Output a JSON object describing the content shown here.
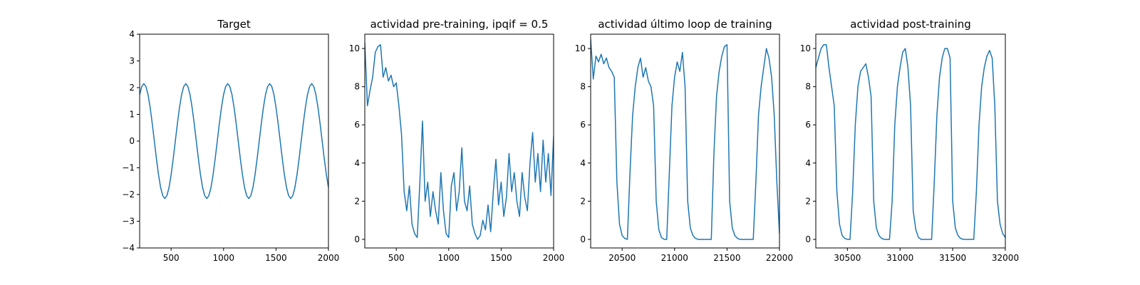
{
  "chart_data": [
    {
      "type": "line",
      "title": "Target",
      "color": "#1f77b4",
      "x": [
        200,
        220,
        240,
        260,
        280,
        300,
        320,
        340,
        360,
        380,
        400,
        420,
        440,
        460,
        480,
        500,
        520,
        540,
        560,
        580,
        600,
        620,
        640,
        660,
        680,
        700,
        720,
        740,
        760,
        780,
        800,
        820,
        840,
        860,
        880,
        900,
        920,
        940,
        960,
        980,
        1000,
        1020,
        1040,
        1060,
        1080,
        1100,
        1120,
        1140,
        1160,
        1180,
        1200,
        1220,
        1240,
        1260,
        1280,
        1300,
        1320,
        1340,
        1360,
        1380,
        1400,
        1420,
        1440,
        1460,
        1480,
        1500,
        1520,
        1540,
        1560,
        1580,
        1600,
        1620,
        1640,
        1660,
        1680,
        1700,
        1720,
        1740,
        1760,
        1780,
        1800,
        1820,
        1840,
        1860,
        1880,
        1900,
        1920,
        1940,
        1960,
        1980,
        2000
      ],
      "values": [
        1.74,
        2.04,
        2.15,
        2.04,
        1.74,
        1.26,
        0.66,
        0,
        -0.66,
        -1.26,
        -1.74,
        -2.04,
        -2.15,
        -2.04,
        -1.74,
        -1.26,
        -0.66,
        0,
        0.66,
        1.26,
        1.74,
        2.04,
        2.15,
        2.04,
        1.74,
        1.26,
        0.66,
        0,
        -0.66,
        -1.26,
        -1.74,
        -2.04,
        -2.15,
        -2.04,
        -1.74,
        -1.26,
        -0.66,
        0,
        0.66,
        1.26,
        1.74,
        2.04,
        2.15,
        2.04,
        1.74,
        1.26,
        0.66,
        0,
        -0.66,
        -1.26,
        -1.74,
        -2.04,
        -2.15,
        -2.04,
        -1.74,
        -1.26,
        -0.66,
        0,
        0.66,
        1.26,
        1.74,
        2.04,
        2.15,
        2.04,
        1.74,
        1.26,
        0.66,
        0,
        -0.66,
        -1.26,
        -1.74,
        -2.04,
        -2.15,
        -2.04,
        -1.74,
        -1.26,
        -0.66,
        0,
        0.66,
        1.26,
        1.74,
        2.04,
        2.15,
        2.04,
        1.74,
        1.26,
        0.66,
        0,
        -0.66,
        -1.26,
        -1.74
      ],
      "xlim": [
        200,
        2000
      ],
      "xticks": [
        500,
        1000,
        1500,
        2000
      ],
      "ylim": [
        -4,
        4
      ],
      "yticks": [
        {
          "value": -4,
          "label": "−4"
        },
        {
          "value": -3,
          "label": "−3"
        },
        {
          "value": -2,
          "label": "−2"
        },
        {
          "value": -1,
          "label": "−1"
        },
        0,
        1,
        2,
        3,
        4
      ]
    },
    {
      "type": "line",
      "title": "actividad pre-training, ipqif = 0.5",
      "color": "#1f77b4",
      "x": [
        200,
        225,
        250,
        275,
        300,
        325,
        350,
        375,
        400,
        425,
        450,
        475,
        500,
        525,
        550,
        575,
        600,
        625,
        650,
        675,
        700,
        725,
        750,
        775,
        800,
        825,
        850,
        875,
        900,
        925,
        950,
        975,
        1000,
        1025,
        1050,
        1075,
        1100,
        1125,
        1150,
        1175,
        1200,
        1225,
        1250,
        1275,
        1300,
        1325,
        1350,
        1375,
        1400,
        1425,
        1450,
        1475,
        1500,
        1525,
        1550,
        1575,
        1600,
        1625,
        1650,
        1675,
        1700,
        1725,
        1750,
        1775,
        1800,
        1825,
        1850,
        1875,
        1900,
        1925,
        1950,
        1975,
        2000
      ],
      "values": [
        10.3,
        7.0,
        7.8,
        8.5,
        9.8,
        10.1,
        10.2,
        8.5,
        9.0,
        8.3,
        8.6,
        8.0,
        8.2,
        7.0,
        5.5,
        2.5,
        1.5,
        2.8,
        0.8,
        0.3,
        0.1,
        3.0,
        6.2,
        2.0,
        3.0,
        1.2,
        2.5,
        1.5,
        0.8,
        3.5,
        1.5,
        0.3,
        0.1,
        2.8,
        3.5,
        1.5,
        2.5,
        4.8,
        2.0,
        1.5,
        2.8,
        0.8,
        0.3,
        0.0,
        0.2,
        1.0,
        0.5,
        1.8,
        0.4,
        2.5,
        4.2,
        1.8,
        3.0,
        1.2,
        2.2,
        4.5,
        2.5,
        3.5,
        2.0,
        1.2,
        3.5,
        2.2,
        1.5,
        4.0,
        5.6,
        3.0,
        4.5,
        2.5,
        5.2,
        3.0,
        4.5,
        2.3,
        5.4
      ],
      "xlim": [
        200,
        2000
      ],
      "xticks": [
        500,
        1000,
        1500,
        2000
      ],
      "ylim": [
        -0.45,
        10.75
      ],
      "yticks": [
        0,
        2,
        4,
        6,
        8,
        10
      ]
    },
    {
      "type": "line",
      "title": "actividad último loop de training",
      "color": "#1f77b4",
      "x": [
        20200,
        20225,
        20250,
        20275,
        20300,
        20325,
        20350,
        20375,
        20400,
        20425,
        20450,
        20475,
        20500,
        20525,
        20550,
        20575,
        20600,
        20625,
        20650,
        20675,
        20700,
        20725,
        20750,
        20775,
        20800,
        20825,
        20850,
        20875,
        20900,
        20925,
        20950,
        20975,
        21000,
        21025,
        21050,
        21075,
        21100,
        21125,
        21150,
        21175,
        21200,
        21225,
        21250,
        21275,
        21300,
        21325,
        21350,
        21375,
        21400,
        21425,
        21450,
        21475,
        21500,
        21525,
        21550,
        21575,
        21600,
        21625,
        21650,
        21675,
        21700,
        21725,
        21750,
        21775,
        21800,
        21825,
        21850,
        21875,
        21900,
        21925,
        21950,
        21975,
        22000
      ],
      "values": [
        10.5,
        8.4,
        9.6,
        9.3,
        9.7,
        9.2,
        9.5,
        9.0,
        8.8,
        8.5,
        3.0,
        0.8,
        0.2,
        0.05,
        0,
        3.5,
        6.5,
        8.0,
        9.0,
        9.5,
        8.5,
        9.0,
        8.3,
        8.0,
        7.0,
        2.0,
        0.5,
        0.1,
        0,
        0,
        3.5,
        7.0,
        8.5,
        9.3,
        8.8,
        9.8,
        8.0,
        2.0,
        0.6,
        0.2,
        0.05,
        0,
        0,
        0,
        0,
        0,
        0,
        4.5,
        7.5,
        8.8,
        9.6,
        10.1,
        10.2,
        2.0,
        0.6,
        0.2,
        0.05,
        0,
        0,
        0,
        0,
        0,
        0,
        3.0,
        6.5,
        8.0,
        9.0,
        10.0,
        9.5,
        8.5,
        6.5,
        3.0,
        0.3
      ],
      "xlim": [
        20200,
        22000
      ],
      "xticks": [
        20500,
        21000,
        21500,
        22000
      ],
      "ylim": [
        -0.45,
        10.75
      ],
      "yticks": [
        0,
        2,
        4,
        6,
        8,
        10
      ]
    },
    {
      "type": "line",
      "title": "actividad post-training",
      "color": "#1f77b4",
      "x": [
        30200,
        30225,
        30250,
        30275,
        30300,
        30325,
        30350,
        30375,
        30400,
        30425,
        30450,
        30475,
        30500,
        30525,
        30550,
        30575,
        30600,
        30625,
        30650,
        30675,
        30700,
        30725,
        30750,
        30775,
        30800,
        30825,
        30850,
        30875,
        30900,
        30925,
        30950,
        30975,
        31000,
        31025,
        31050,
        31075,
        31100,
        31125,
        31150,
        31175,
        31200,
        31225,
        31250,
        31275,
        31300,
        31325,
        31350,
        31375,
        31400,
        31425,
        31450,
        31475,
        31500,
        31525,
        31550,
        31575,
        31600,
        31625,
        31650,
        31675,
        31700,
        31725,
        31750,
        31775,
        31800,
        31825,
        31850,
        31875,
        31900,
        31925,
        31950,
        31975,
        32000
      ],
      "values": [
        9.0,
        9.5,
        10.0,
        10.2,
        10.2,
        9.0,
        8.0,
        7.0,
        2.5,
        0.8,
        0.2,
        0.05,
        0,
        0,
        2.5,
        6.0,
        8.0,
        8.8,
        9.0,
        9.2,
        8.5,
        7.5,
        2.0,
        0.6,
        0.2,
        0.05,
        0,
        0,
        0,
        2.0,
        6.0,
        8.0,
        9.0,
        9.8,
        10.0,
        9.0,
        7.0,
        1.5,
        0.5,
        0.1,
        0,
        0,
        0,
        0,
        0,
        3.0,
        6.5,
        8.5,
        9.5,
        10.0,
        10.0,
        9.5,
        2.0,
        0.6,
        0.2,
        0.05,
        0,
        0,
        0,
        0,
        0,
        2.5,
        6.0,
        8.0,
        9.0,
        9.6,
        9.9,
        9.5,
        7.0,
        2.0,
        0.8,
        0.3,
        0.1
      ],
      "xlim": [
        30200,
        32000
      ],
      "xticks": [
        30500,
        31000,
        31500,
        32000
      ],
      "ylim": [
        -0.45,
        10.75
      ],
      "yticks": [
        0,
        2,
        4,
        6,
        8,
        10
      ]
    }
  ]
}
